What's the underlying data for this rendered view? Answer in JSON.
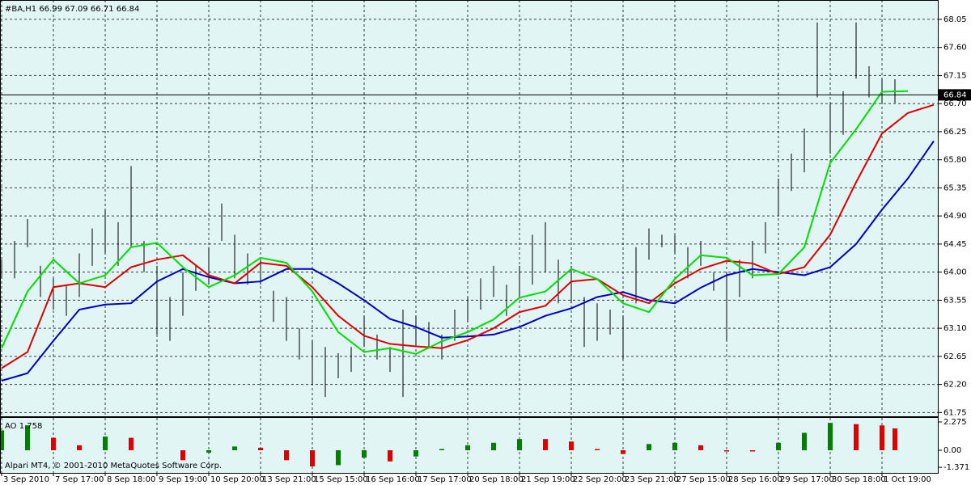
{
  "chart_data": [
    {
      "type": "ohlc",
      "title": "#BA,H1  66.99 67.09 66.71 66.84",
      "color": "#000000",
      "background": "#e1f5f5",
      "grid": true,
      "xlim": [
        -0.5,
        289.5
      ],
      "ylim": [
        61.69,
        68.36
      ],
      "yticks": [
        61.75,
        {
          "value": 62.2,
          "label": "62.20"
        },
        62.65,
        {
          "value": 63.1,
          "label": "63.10"
        },
        63.55,
        {
          "value": 64.0,
          "label": "64.00"
        },
        64.45,
        {
          "value": 64.9,
          "label": "64.90"
        },
        65.35,
        {
          "value": 65.8,
          "label": "65.80"
        },
        66.25,
        {
          "value": 66.7,
          "label": "66.70"
        },
        67.15,
        {
          "value": 67.6,
          "label": "67.60"
        },
        68.05
      ],
      "last_price": 66.84,
      "x": [
        0,
        4,
        8,
        12,
        16,
        20,
        24,
        28,
        32,
        36,
        40,
        44,
        48,
        52,
        56,
        60,
        64,
        68,
        72,
        76,
        80,
        84,
        88,
        92,
        96,
        100,
        104,
        108,
        112,
        116,
        120,
        124,
        128,
        132,
        136,
        140,
        144,
        148,
        152,
        156,
        160,
        164,
        168,
        172,
        176,
        180,
        184,
        188,
        192,
        196,
        200,
        204,
        208,
        212,
        216,
        220,
        224,
        228,
        232,
        236,
        240,
        244,
        248,
        252,
        256,
        260,
        264,
        268,
        272,
        276
      ],
      "high": [
        64.2,
        64.5,
        64.85,
        64.1,
        63.9,
        63.8,
        64.3,
        64.7,
        65.0,
        64.8,
        65.7,
        64.5,
        64.1,
        63.6,
        64.0,
        64.1,
        64.4,
        65.1,
        64.6,
        64.3,
        64.2,
        63.7,
        63.6,
        63.1,
        62.9,
        62.8,
        62.7,
        62.8,
        63.3,
        63.0,
        62.8,
        63.4,
        63.3,
        63.2,
        63.0,
        63.4,
        63.6,
        63.9,
        64.1,
        63.8,
        64.1,
        64.6,
        64.8,
        64.2,
        64.1,
        63.6,
        63.5,
        63.4,
        63.3,
        64.4,
        64.7,
        64.6,
        64.6,
        64.4,
        64.5,
        64.0,
        64.0,
        64.2,
        64.5,
        64.8,
        65.5,
        65.9,
        66.3,
        68.0,
        66.7,
        66.9,
        68.0,
        67.3,
        67.1,
        67.09
      ],
      "low": [
        63.9,
        63.9,
        64.4,
        63.6,
        63.4,
        63.3,
        63.6,
        64.1,
        64.3,
        64.1,
        64.4,
        64.0,
        63.0,
        62.9,
        63.3,
        63.7,
        63.8,
        64.5,
        63.9,
        63.8,
        63.8,
        63.2,
        62.9,
        62.6,
        62.2,
        62.0,
        62.3,
        62.4,
        62.8,
        62.6,
        62.4,
        62.0,
        62.8,
        62.8,
        62.6,
        62.9,
        63.2,
        63.4,
        63.6,
        63.3,
        63.6,
        63.8,
        64.0,
        63.5,
        63.5,
        62.8,
        62.9,
        63.0,
        62.6,
        63.5,
        64.2,
        64.4,
        64.3,
        63.9,
        64.1,
        63.7,
        62.9,
        63.6,
        63.9,
        64.3,
        64.9,
        65.3,
        65.6,
        66.8,
        65.9,
        66.2,
        67.1,
        66.8,
        66.7,
        66.71
      ],
      "ma_x": [
        0,
        8,
        16,
        24,
        32,
        40,
        48,
        56,
        64,
        72,
        80,
        88,
        96,
        104,
        112,
        120,
        128,
        136,
        144,
        152,
        160,
        168,
        176,
        184,
        192,
        200,
        208,
        216,
        224,
        232,
        240,
        248,
        256,
        264,
        272,
        280,
        288
      ],
      "lines": [
        {
          "color": "#0000c8",
          "values": [
            62.26,
            62.38,
            62.9,
            63.4,
            63.48,
            63.5,
            63.85,
            64.05,
            63.92,
            63.82,
            63.85,
            64.05,
            64.05,
            63.82,
            63.55,
            63.25,
            63.12,
            62.95,
            62.97,
            63.0,
            63.12,
            63.3,
            63.42,
            63.6,
            63.68,
            63.55,
            63.5,
            63.75,
            63.95,
            64.05,
            64.0,
            63.95,
            64.08,
            64.45,
            65.0,
            65.5,
            66.1
          ]
        },
        {
          "color": "#e00000",
          "values": [
            62.46,
            62.72,
            63.76,
            63.82,
            63.76,
            64.08,
            64.2,
            64.27,
            63.95,
            63.82,
            64.15,
            64.1,
            63.76,
            63.3,
            62.98,
            62.85,
            62.81,
            62.78,
            62.91,
            63.1,
            63.36,
            63.46,
            63.85,
            63.89,
            63.63,
            63.5,
            63.82,
            64.05,
            64.18,
            64.14,
            63.97,
            64.08,
            64.6,
            65.44,
            66.22,
            66.55,
            66.68
          ]
        },
        {
          "color": "#00e000",
          "values": [
            62.78,
            63.69,
            64.2,
            63.82,
            63.95,
            64.4,
            64.47,
            64.08,
            63.76,
            63.95,
            64.23,
            64.15,
            63.69,
            63.04,
            62.72,
            62.78,
            62.69,
            62.89,
            63.04,
            63.24,
            63.59,
            63.69,
            64.05,
            63.89,
            63.5,
            63.36,
            63.89,
            64.27,
            64.23,
            63.95,
            63.97,
            64.4,
            65.75,
            66.29,
            66.89,
            66.9,
            null
          ]
        }
      ]
    },
    {
      "type": "bar",
      "title": "AO 1.758",
      "up_color": "#008000",
      "down_color": "#e00000",
      "background": "#e1f5f5",
      "grid": true,
      "xlim": [
        -0.5,
        289.5
      ],
      "ylim": [
        -1.82,
        2.6
      ],
      "yticks": [
        2.275,
        {
          "value": 0,
          "label": "0.00"
        },
        -1.371
      ],
      "xticks": [
        {
          "value": 0,
          "label": "3 Sep 2010"
        },
        {
          "value": 16,
          "label": "7 Sep 17:00"
        },
        {
          "value": 32,
          "label": "8 Sep 18:00"
        },
        {
          "value": 48,
          "label": "9 Sep 19:00"
        },
        {
          "value": 64,
          "label": "10 Sep 20:00"
        },
        {
          "value": 80,
          "label": "13 Sep 21:00"
        },
        {
          "value": 96,
          "label": "15 Sep 15:00"
        },
        {
          "value": 112,
          "label": "16 Sep 16:00"
        },
        {
          "value": 128,
          "label": "17 Sep 17:00"
        },
        {
          "value": 144,
          "label": "20 Sep 18:00"
        },
        {
          "value": 160,
          "label": "21 Sep 19:00"
        },
        {
          "value": 176,
          "label": "22 Sep 20:00"
        },
        {
          "value": 192,
          "label": "23 Sep 21:00"
        },
        {
          "value": 208,
          "label": "27 Sep 15:00"
        },
        {
          "value": 224,
          "label": "28 Sep 16:00"
        },
        {
          "value": 240,
          "label": "29 Sep 17:00"
        },
        {
          "value": 256,
          "label": "30 Sep 18:00"
        },
        {
          "value": 272,
          "label": "1 Oct 19:00"
        }
      ],
      "x": [
        0,
        8,
        16,
        24,
        32,
        40,
        48,
        56,
        64,
        72,
        80,
        88,
        96,
        104,
        112,
        120,
        128,
        136,
        144,
        152,
        160,
        168,
        176,
        184,
        192,
        200,
        208,
        216,
        224,
        232,
        240,
        248,
        256,
        264,
        272,
        276
      ],
      "values": [
        1.6,
        2.0,
        1.0,
        0.4,
        1.1,
        1.0,
        0.0,
        -0.8,
        -0.2,
        0.3,
        0.2,
        -0.8,
        -1.3,
        -1.2,
        -0.6,
        -0.9,
        -0.5,
        0.1,
        0.4,
        0.6,
        0.9,
        0.9,
        0.7,
        0.1,
        -0.3,
        0.5,
        0.6,
        0.4,
        -0.1,
        -0.1,
        0.6,
        1.4,
        2.2,
        2.1,
        2.0,
        1.758
      ]
    }
  ],
  "footer": "Alpari MT4, © 2001-2010 MetaQuotes Software Corp."
}
